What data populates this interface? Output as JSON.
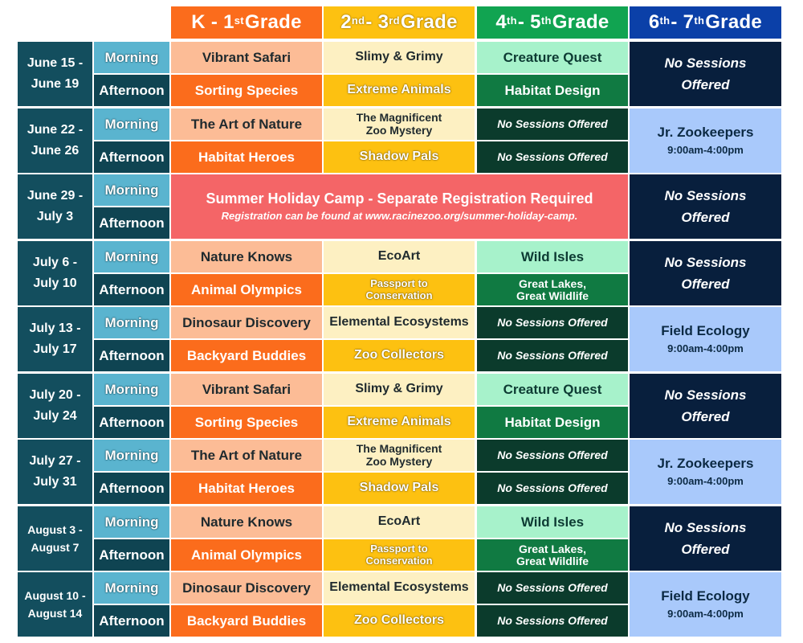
{
  "headers": {
    "k1": {
      "a": "K - 1",
      "a_sup": "st",
      "b": " Grade"
    },
    "g23": {
      "a": "2",
      "a_sup": "nd",
      "b": " - 3",
      "b_sup": "rd",
      "c": " Grade"
    },
    "g45": {
      "a": "4",
      "a_sup": "th",
      "b": " - 5",
      "b_sup": "th",
      "c": " Grade"
    },
    "g67": {
      "a": "6",
      "a_sup": "th",
      "b": " - 7",
      "b_sup": "th",
      "c": " Grade"
    }
  },
  "colors": {
    "k1": "#fb6c1c",
    "g23": "#fdc111",
    "g45": "#11a451",
    "g67": "#0b40a8",
    "date": "#134e5e",
    "holiday": "#f46567"
  },
  "slots": {
    "morning": "Morning",
    "afternoon": "Afternoon"
  },
  "weeks": [
    {
      "date1": "June 15 -",
      "date2": "June 19",
      "k1_am": "Vibrant Safari",
      "k1_pm": "Sorting Species",
      "g23_am": [
        "Slimy & Grimy"
      ],
      "g23_pm": [
        "Extreme Animals"
      ],
      "g45_am": [
        "Creature Quest"
      ],
      "g45_pm": [
        "Habitat Design"
      ],
      "g67": {
        "type": "off",
        "l1": "No Sessions",
        "l2": "Offered"
      }
    },
    {
      "date1": "June 22 -",
      "date2": "June 26",
      "k1_am": "The Art of Nature",
      "k1_pm": "Habitat Heroes",
      "g23_am": [
        "The Magnificent",
        "Zoo Mystery"
      ],
      "g23_pm": [
        "Shadow Pals"
      ],
      "g45_am": [
        "No Sessions Offered"
      ],
      "g45_pm": [
        "No Sessions Offered"
      ],
      "g67": {
        "type": "camp",
        "l1": "Jr. Zookeepers",
        "l2": "9:00am-4:00pm"
      }
    },
    {
      "date1": "June 29 -",
      "date2": "July 3",
      "holiday": {
        "title": "Summer Holiday Camp - Separate Registration Required",
        "note": "Registration can be found at www.racinezoo.org/summer-holiday-camp."
      },
      "g67": {
        "type": "off",
        "l1": "No Sessions",
        "l2": "Offered"
      }
    },
    {
      "date1": "July 6 -",
      "date2": "July 10",
      "k1_am": "Nature Knows",
      "k1_pm": "Animal Olympics",
      "g23_am": [
        "EcoArt"
      ],
      "g23_pm": [
        "Passport to",
        "Conservation"
      ],
      "g45_am": [
        "Wild Isles"
      ],
      "g45_pm": [
        "Great Lakes,",
        "Great Wildlife"
      ],
      "g67": {
        "type": "off",
        "l1": "No Sessions",
        "l2": "Offered"
      }
    },
    {
      "date1": "July 13 -",
      "date2": "July 17",
      "k1_am": "Dinosaur Discovery",
      "k1_pm": "Backyard Buddies",
      "g23_am": [
        "Elemental Ecosystems"
      ],
      "g23_pm": [
        "Zoo Collectors"
      ],
      "g45_am": [
        "No Sessions Offered"
      ],
      "g45_pm": [
        "No Sessions Offered"
      ],
      "g67": {
        "type": "camp",
        "l1": "Field Ecology",
        "l2": "9:00am-4:00pm"
      }
    },
    {
      "date1": "July 20 -",
      "date2": "July 24",
      "k1_am": "Vibrant Safari",
      "k1_pm": "Sorting Species",
      "g23_am": [
        "Slimy & Grimy"
      ],
      "g23_pm": [
        "Extreme Animals"
      ],
      "g45_am": [
        "Creature Quest"
      ],
      "g45_pm": [
        "Habitat Design"
      ],
      "g67": {
        "type": "off",
        "l1": "No Sessions",
        "l2": "Offered"
      }
    },
    {
      "date1": "July 27 -",
      "date2": "July 31",
      "k1_am": "The Art of Nature",
      "k1_pm": "Habitat Heroes",
      "g23_am": [
        "The Magnificent",
        "Zoo Mystery"
      ],
      "g23_pm": [
        "Shadow Pals"
      ],
      "g45_am": [
        "No Sessions Offered"
      ],
      "g45_pm": [
        "No Sessions Offered"
      ],
      "g67": {
        "type": "camp",
        "l1": "Jr. Zookeepers",
        "l2": "9:00am-4:00pm"
      }
    },
    {
      "date1": "August 3 -",
      "date2": "August 7",
      "k1_am": "Nature Knows",
      "k1_pm": "Animal Olympics",
      "g23_am": [
        "EcoArt"
      ],
      "g23_pm": [
        "Passport to",
        "Conservation"
      ],
      "g45_am": [
        "Wild Isles"
      ],
      "g45_pm": [
        "Great Lakes,",
        "Great Wildlife"
      ],
      "g67": {
        "type": "off",
        "l1": "No Sessions",
        "l2": "Offered"
      }
    },
    {
      "date1": "August 10 -",
      "date2": "August 14",
      "k1_am": "Dinosaur Discovery",
      "k1_pm": "Backyard Buddies",
      "g23_am": [
        "Elemental Ecosystems"
      ],
      "g23_pm": [
        "Zoo Collectors"
      ],
      "g45_am": [
        "No Sessions Offered"
      ],
      "g45_pm": [
        "No Sessions Offered"
      ],
      "g67": {
        "type": "camp",
        "l1": "Field Ecology",
        "l2": "9:00am-4:00pm"
      }
    }
  ]
}
